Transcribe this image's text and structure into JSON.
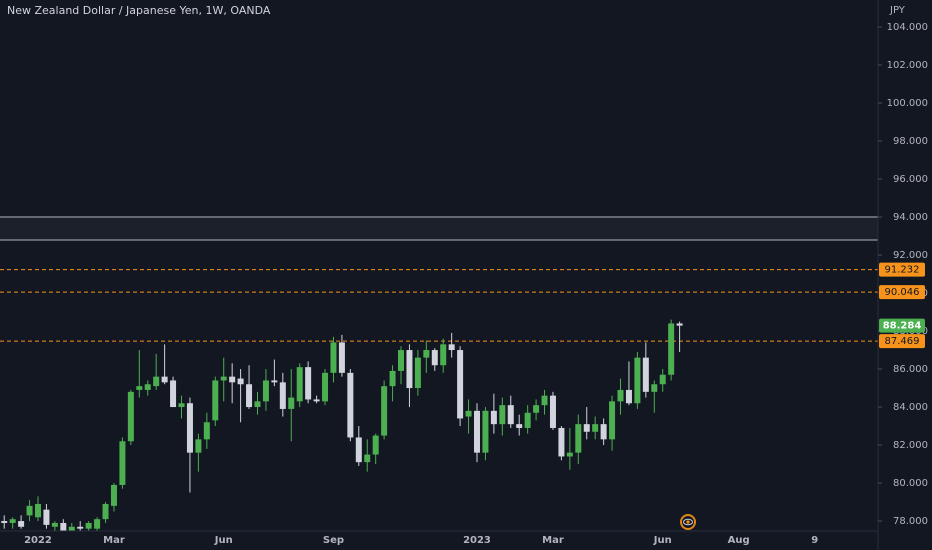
{
  "chart_data": {
    "type": "candlestick",
    "title": "New Zealand Dollar / Japanese Yen, 1W, OANDA",
    "currency": "JPY",
    "up_color": "#4caf50",
    "down_color": "#d1d4dc",
    "categories": [
      null,
      null,
      null,
      null,
      "2022",
      null,
      null,
      null,
      null,
      null,
      null,
      null,
      null,
      "Mar",
      null,
      null,
      null,
      null,
      null,
      null,
      null,
      null,
      null,
      null,
      null,
      null,
      "Jun",
      null,
      null,
      null,
      null,
      null,
      null,
      null,
      null,
      null,
      null,
      null,
      null,
      "Sep",
      null,
      null,
      null,
      null,
      null,
      null,
      null,
      null,
      null,
      null,
      null,
      null,
      null,
      null,
      null,
      null,
      "2023",
      null,
      null,
      null,
      null,
      null,
      null,
      null,
      null,
      "Mar",
      null,
      null,
      null,
      null,
      null,
      null,
      null,
      null,
      null,
      null,
      null,
      null,
      "Jun",
      null,
      null,
      null,
      null,
      null,
      null,
      null,
      null,
      "Aug",
      null,
      null,
      null,
      null,
      null,
      null,
      null,
      null,
      "9",
      null,
      null,
      null,
      null,
      null,
      null,
      null
    ],
    "open": [
      78.0,
      77.9,
      78.0,
      78.3,
      78.2,
      78.6,
      77.7,
      77.9,
      77.5,
      77.7,
      77.6,
      77.6,
      78.1,
      78.8,
      79.9,
      82.2,
      84.9,
      84.9,
      85.1,
      85.6,
      85.4,
      84.0,
      84.2,
      81.6,
      82.3,
      83.3,
      85.4,
      85.6,
      85.5,
      85.2,
      84.0,
      84.3,
      85.4,
      85.3,
      83.9,
      84.3,
      86.1,
      84.4,
      84.3,
      85.8,
      87.4,
      85.8,
      82.4,
      81.1,
      81.5,
      82.5,
      85.1,
      85.9,
      87.0,
      85.0,
      86.6,
      87.0,
      86.2,
      87.3,
      87.0,
      83.5,
      83.8,
      81.6,
      83.8,
      83.1,
      84.1,
      83.1,
      82.9,
      83.7,
      84.1,
      84.6,
      82.9,
      81.4,
      81.6,
      83.1,
      82.7,
      83.1,
      82.3,
      84.3,
      84.9,
      84.2,
      86.6,
      84.8,
      85.2,
      85.7,
      88.4,
      null,
      null,
      null,
      null,
      null,
      null,
      null,
      null,
      null,
      null,
      null,
      null,
      null,
      null,
      null,
      null,
      null,
      null,
      null,
      null,
      null,
      null,
      null
    ],
    "high": [
      78.3,
      78.2,
      78.3,
      79.1,
      79.3,
      78.9,
      78.0,
      78.1,
      77.9,
      78.0,
      78.0,
      78.2,
      79.0,
      80.0,
      82.4,
      84.9,
      87.0,
      85.4,
      86.8,
      87.3,
      85.6,
      84.6,
      84.5,
      82.6,
      83.7,
      85.6,
      86.6,
      86.3,
      86.0,
      86.2,
      84.8,
      86.0,
      86.5,
      85.8,
      86.0,
      86.3,
      86.4,
      84.6,
      86.0,
      87.7,
      87.8,
      86.0,
      83.0,
      82.3,
      82.6,
      85.4,
      86.2,
      87.2,
      87.3,
      87.0,
      87.5,
      87.1,
      87.6,
      87.9,
      87.2,
      84.4,
      84.2,
      84.0,
      84.7,
      84.5,
      84.6,
      83.6,
      84.1,
      84.4,
      84.9,
      84.8,
      83.0,
      82.9,
      83.6,
      84.0,
      83.5,
      83.4,
      84.6,
      85.5,
      86.4,
      86.9,
      87.4,
      85.4,
      86.0,
      88.6,
      88.5,
      null,
      null,
      null,
      null,
      null,
      null,
      null,
      null,
      null,
      null,
      null,
      null,
      null,
      null,
      null,
      null,
      null,
      null,
      null,
      null,
      null,
      null,
      null
    ],
    "low": [
      77.6,
      77.6,
      77.6,
      78.0,
      78.0,
      77.6,
      77.4,
      77.3,
      77.2,
      77.4,
      77.3,
      77.4,
      77.9,
      78.5,
      79.7,
      82.0,
      84.5,
      84.6,
      84.9,
      85.2,
      84.0,
      83.4,
      79.5,
      80.6,
      81.8,
      83.0,
      84.3,
      84.2,
      83.2,
      83.9,
      83.6,
      83.8,
      85.1,
      83.5,
      82.2,
      84.0,
      84.2,
      84.2,
      84.1,
      85.3,
      85.6,
      82.2,
      80.9,
      80.6,
      81.0,
      82.3,
      84.3,
      85.2,
      84.0,
      84.6,
      85.8,
      85.9,
      85.8,
      86.6,
      83.0,
      82.6,
      81.1,
      81.2,
      82.6,
      82.5,
      82.9,
      82.5,
      82.6,
      83.3,
      83.6,
      82.8,
      81.2,
      80.7,
      81.0,
      82.3,
      82.3,
      82.0,
      81.7,
      83.6,
      84.1,
      83.9,
      84.5,
      83.7,
      84.8,
      85.4,
      86.9,
      null,
      null,
      null,
      null,
      null,
      null,
      null,
      null,
      null,
      null,
      null,
      null,
      null,
      null,
      null,
      null,
      null,
      null,
      null,
      null,
      null,
      null,
      null
    ],
    "close": [
      77.9,
      78.1,
      77.7,
      78.8,
      78.9,
      77.8,
      77.9,
      77.5,
      77.7,
      77.6,
      77.9,
      78.1,
      78.9,
      79.9,
      82.2,
      84.8,
      85.1,
      85.2,
      85.6,
      85.3,
      84.0,
      84.2,
      81.6,
      82.3,
      83.2,
      85.4,
      85.6,
      85.3,
      85.2,
      84.0,
      84.3,
      85.4,
      85.3,
      83.9,
      84.5,
      86.1,
      84.4,
      84.3,
      85.8,
      87.4,
      85.8,
      82.4,
      81.1,
      81.5,
      82.5,
      85.1,
      85.9,
      87.0,
      85.0,
      86.6,
      87.0,
      86.2,
      87.3,
      87.0,
      83.4,
      83.8,
      81.6,
      83.8,
      83.1,
      84.1,
      83.1,
      82.9,
      83.7,
      84.1,
      84.6,
      82.9,
      81.4,
      81.6,
      83.1,
      82.7,
      83.1,
      82.3,
      84.3,
      84.9,
      84.2,
      86.6,
      84.8,
      85.2,
      85.7,
      88.4,
      88.284,
      null,
      null,
      null,
      null,
      null,
      null,
      null,
      null,
      null,
      null,
      null,
      null,
      null,
      null,
      null,
      null,
      null,
      null,
      null,
      null,
      null,
      null,
      null
    ],
    "ylim": [
      77.53,
      105.42
    ],
    "yticks": [
      {
        "value": 78,
        "label": "78.000"
      },
      {
        "value": 80,
        "label": "80.000"
      },
      {
        "value": 82,
        "label": "82.000"
      },
      {
        "value": 84,
        "label": "84.000"
      },
      {
        "value": 86,
        "label": "86.000"
      },
      {
        "value": 88,
        "label": "88.000"
      },
      {
        "value": 90,
        "label": "90.000"
      },
      {
        "value": 92,
        "label": "92.000"
      },
      {
        "value": 94,
        "label": "94.000"
      },
      {
        "value": 96,
        "label": "96.000"
      },
      {
        "value": 98,
        "label": "98.000"
      },
      {
        "value": 100,
        "label": "100.000"
      },
      {
        "value": 102,
        "label": "102.000"
      },
      {
        "value": 104,
        "label": "104.000"
      }
    ],
    "zone": [
      92.79,
      94
    ],
    "zone_color": "#b2b5be",
    "levels": [
      91.232,
      90.046,
      87.469
    ],
    "level_color": "#f7931a"
  }
}
